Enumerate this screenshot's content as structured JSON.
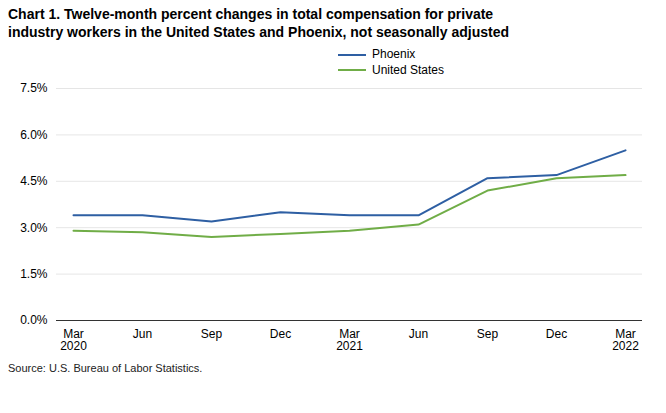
{
  "chart_data": {
    "type": "line",
    "title": "Chart 1. Twelve-month percent changes in total compensation for private\nindustry workers in the United States and Phoenix, not seasonally adjusted",
    "source": "Source: U.S. Bureau of Labor Statistics.",
    "categories": [
      "Mar\n2020",
      "Jun",
      "Sep",
      "Dec",
      "Mar\n2021",
      "Jun",
      "Sep",
      "Dec",
      "Mar\n2022"
    ],
    "series": [
      {
        "name": "Phoenix",
        "color": "#2e5fa3",
        "values": [
          3.4,
          3.4,
          3.2,
          3.5,
          3.4,
          3.4,
          4.6,
          4.7,
          5.5
        ]
      },
      {
        "name": "United States",
        "color": "#70ad47",
        "values": [
          2.9,
          2.85,
          2.7,
          2.8,
          2.9,
          3.1,
          4.2,
          4.6,
          4.7
        ]
      }
    ],
    "ylim": [
      0,
      7.5
    ],
    "yticks": [
      {
        "value": 0.0,
        "label": "0.0%"
      },
      {
        "value": 1.5,
        "label": "1.5%"
      },
      {
        "value": 3.0,
        "label": "3.0%"
      },
      {
        "value": 4.5,
        "label": "4.5%"
      },
      {
        "value": 6.0,
        "label": "6.0%"
      },
      {
        "value": 7.5,
        "label": "7.5%"
      }
    ],
    "grid": true,
    "legend": "top"
  }
}
